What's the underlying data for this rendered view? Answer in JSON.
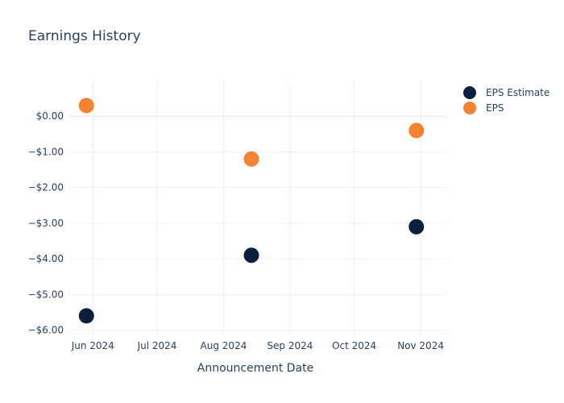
{
  "chart_data": {
    "type": "scatter",
    "title": "Earnings History",
    "xlabel": "Announcement Date",
    "ylabel": "",
    "x_ticks": [
      {
        "date": "2024-06-01",
        "label": "Jun 2024"
      },
      {
        "date": "2024-07-01",
        "label": "Jul 2024"
      },
      {
        "date": "2024-08-01",
        "label": "Aug 2024"
      },
      {
        "date": "2024-09-01",
        "label": "Sep 2024"
      },
      {
        "date": "2024-10-01",
        "label": "Oct 2024"
      },
      {
        "date": "2024-11-01",
        "label": "Nov 2024"
      }
    ],
    "y_ticks": [
      {
        "value": 0,
        "label": "$0.00"
      },
      {
        "value": -1,
        "label": "−$1.00"
      },
      {
        "value": -2,
        "label": "−$2.00"
      },
      {
        "value": -3,
        "label": "−$3.00"
      },
      {
        "value": -4,
        "label": "−$4.00"
      },
      {
        "value": -5,
        "label": "−$5.00"
      },
      {
        "value": -6,
        "label": "−$6.00"
      }
    ],
    "xlim": [
      "2024-05-21",
      "2024-11-13"
    ],
    "ylim": [
      -6.1,
      1.0
    ],
    "grid": true,
    "legend_position": "top-right",
    "series": [
      {
        "name": "EPS Estimate",
        "color": "#0b1f3f",
        "points": [
          {
            "x": "2024-05-29",
            "y": -5.6
          },
          {
            "x": "2024-08-14",
            "y": -3.9
          },
          {
            "x": "2024-10-30",
            "y": -3.1
          }
        ]
      },
      {
        "name": "EPS",
        "color": "#f58231",
        "points": [
          {
            "x": "2024-05-29",
            "y": 0.3
          },
          {
            "x": "2024-08-14",
            "y": -1.2
          },
          {
            "x": "2024-10-30",
            "y": -0.4
          }
        ]
      }
    ]
  }
}
